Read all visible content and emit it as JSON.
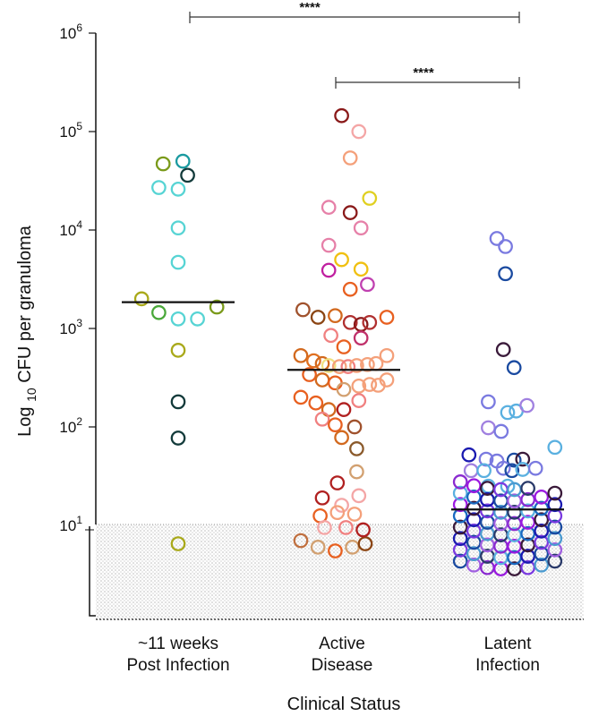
{
  "chart_data": {
    "type": "scatter",
    "title": "",
    "xlabel": "Clinical Status",
    "ylabel": "Log 10 CFU per granuloma",
    "ylabel_parts": {
      "main": "Log ",
      "sub": "10",
      "rest": " CFU per granuloma"
    },
    "y_scale": "log",
    "ylim": [
      3.5,
      1000000
    ],
    "y_ticks": [
      {
        "base": "10",
        "exp": "1",
        "value": 10
      },
      {
        "base": "10",
        "exp": "2",
        "value": 100
      },
      {
        "base": "10",
        "exp": "3",
        "value": 1000
      },
      {
        "base": "10",
        "exp": "4",
        "value": 10000
      },
      {
        "base": "10",
        "exp": "5",
        "value": 100000
      },
      {
        "base": "10",
        "exp": "6",
        "value": 1000000
      }
    ],
    "limit_of_detection": 14,
    "categories": [
      {
        "line1": "~11 weeks",
        "line2": "Post Infection"
      },
      {
        "line1": "Active",
        "line2": "Disease"
      },
      {
        "line1": "Latent",
        "line2": "Infection"
      }
    ],
    "medians": [
      1850,
      380,
      14.5
    ],
    "significance": [
      {
        "from": 0,
        "to": 2,
        "label": "****"
      },
      {
        "from": 1,
        "to": 2,
        "label": "****"
      }
    ],
    "series": [
      {
        "category": "~11 weeks Post Infection",
        "points": [
          {
            "dx": -0.35,
            "y": 47000,
            "color": "#7a9a1a"
          },
          {
            "dx": 0.11,
            "y": 50000,
            "color": "#1a9aa0"
          },
          {
            "dx": 0.22,
            "y": 36000,
            "color": "#123a3a"
          },
          {
            "dx": -0.45,
            "y": 27000,
            "color": "#57d4d4"
          },
          {
            "dx": 0.0,
            "y": 26000,
            "color": "#57d4d4"
          },
          {
            "dx": 0.0,
            "y": 10500,
            "color": "#57d4d4"
          },
          {
            "dx": 0.0,
            "y": 4700,
            "color": "#57d4d4"
          },
          {
            "dx": -0.85,
            "y": 2000,
            "color": "#a9a91a"
          },
          {
            "dx": -0.45,
            "y": 1450,
            "color": "#4aa83a"
          },
          {
            "dx": 0.0,
            "y": 1250,
            "color": "#57d4d4"
          },
          {
            "dx": 0.45,
            "y": 1250,
            "color": "#57d4d4"
          },
          {
            "dx": 0.9,
            "y": 1650,
            "color": "#7a9a1a"
          },
          {
            "dx": 0.0,
            "y": 600,
            "color": "#a9a91a"
          },
          {
            "dx": 0.0,
            "y": 180,
            "color": "#123a3a"
          },
          {
            "dx": 0.0,
            "y": 77,
            "color": "#123a3a"
          },
          {
            "dx": 0.0,
            "y": 6.5,
            "color": "#a9a91a"
          }
        ]
      },
      {
        "category": "Active Disease",
        "points": [
          {
            "dx": -0.05,
            "y": 145000,
            "color": "#8a1a1a"
          },
          {
            "dx": 0.35,
            "y": 100000,
            "color": "#f4a6a6"
          },
          {
            "dx": 0.15,
            "y": 54000,
            "color": "#f4a07a"
          },
          {
            "dx": 0.6,
            "y": 21000,
            "color": "#e0d020"
          },
          {
            "dx": -0.35,
            "y": 17000,
            "color": "#e680a8"
          },
          {
            "dx": 0.15,
            "y": 15000,
            "color": "#8a1a1a"
          },
          {
            "dx": 0.4,
            "y": 10500,
            "color": "#e680a8"
          },
          {
            "dx": -0.35,
            "y": 7000,
            "color": "#e680a8"
          },
          {
            "dx": -0.05,
            "y": 5000,
            "color": "#f0c010"
          },
          {
            "dx": 0.4,
            "y": 4000,
            "color": "#f0c010"
          },
          {
            "dx": -0.35,
            "y": 3900,
            "color": "#c020a0"
          },
          {
            "dx": 0.55,
            "y": 2800,
            "color": "#c040b0"
          },
          {
            "dx": 0.15,
            "y": 2500,
            "color": "#e86020"
          },
          {
            "dx": -0.95,
            "y": 1550,
            "color": "#a0522d"
          },
          {
            "dx": -0.6,
            "y": 1300,
            "color": "#8b4513"
          },
          {
            "dx": -0.2,
            "y": 1350,
            "color": "#d2691e"
          },
          {
            "dx": 0.15,
            "y": 1150,
            "color": "#b03030"
          },
          {
            "dx": 0.4,
            "y": 1100,
            "color": "#8a1a1a"
          },
          {
            "dx": 0.6,
            "y": 1150,
            "color": "#b03030"
          },
          {
            "dx": 1.0,
            "y": 1300,
            "color": "#e86020"
          },
          {
            "dx": -0.3,
            "y": 850,
            "color": "#f08080"
          },
          {
            "dx": 0.4,
            "y": 800,
            "color": "#c0306a"
          },
          {
            "dx": 0.0,
            "y": 650,
            "color": "#e86020"
          },
          {
            "dx": -1.0,
            "y": 530,
            "color": "#d2691e"
          },
          {
            "dx": -0.7,
            "y": 470,
            "color": "#e07020"
          },
          {
            "dx": -0.5,
            "y": 440,
            "color": "#d2691e"
          },
          {
            "dx": -0.35,
            "y": 420,
            "color": "#f0e080"
          },
          {
            "dx": -0.1,
            "y": 410,
            "color": "#f4a07a"
          },
          {
            "dx": 0.1,
            "y": 410,
            "color": "#f08080"
          },
          {
            "dx": 0.3,
            "y": 420,
            "color": "#f4a07a"
          },
          {
            "dx": 0.55,
            "y": 430,
            "color": "#f4a07a"
          },
          {
            "dx": 0.75,
            "y": 440,
            "color": "#f4a07a"
          },
          {
            "dx": 1.0,
            "y": 530,
            "color": "#f4a07a"
          },
          {
            "dx": -0.8,
            "y": 340,
            "color": "#e86020"
          },
          {
            "dx": -0.5,
            "y": 300,
            "color": "#d2691e"
          },
          {
            "dx": -0.2,
            "y": 280,
            "color": "#e86020"
          },
          {
            "dx": 0.0,
            "y": 240,
            "color": "#d2a070"
          },
          {
            "dx": 0.35,
            "y": 260,
            "color": "#f4a07a"
          },
          {
            "dx": 0.6,
            "y": 270,
            "color": "#f4a07a"
          },
          {
            "dx": 0.8,
            "y": 265,
            "color": "#f4a07a"
          },
          {
            "dx": 1.0,
            "y": 300,
            "color": "#f4a07a"
          },
          {
            "dx": -1.0,
            "y": 200,
            "color": "#e86020"
          },
          {
            "dx": -0.65,
            "y": 175,
            "color": "#e86020"
          },
          {
            "dx": -0.35,
            "y": 150,
            "color": "#d2691e"
          },
          {
            "dx": 0.0,
            "y": 150,
            "color": "#b02020"
          },
          {
            "dx": 0.35,
            "y": 185,
            "color": "#f08080"
          },
          {
            "dx": -0.5,
            "y": 120,
            "color": "#f08080"
          },
          {
            "dx": -0.2,
            "y": 105,
            "color": "#e86020"
          },
          {
            "dx": 0.25,
            "y": 100,
            "color": "#a0522d"
          },
          {
            "dx": -0.05,
            "y": 78,
            "color": "#d2691e"
          },
          {
            "dx": 0.3,
            "y": 60,
            "color": "#8b5a2b"
          },
          {
            "dx": 0.3,
            "y": 35,
            "color": "#d2a070"
          },
          {
            "dx": -0.15,
            "y": 27,
            "color": "#b02020"
          },
          {
            "dx": -0.05,
            "y": 16,
            "color": "#f4a6a6"
          },
          {
            "dx": -1.0,
            "y": 7,
            "color": "#c07040"
          },
          {
            "dx": -0.6,
            "y": 6,
            "color": "#d2a070"
          },
          {
            "dx": -0.2,
            "y": 5.5,
            "color": "#e86020"
          },
          {
            "dx": 0.2,
            "y": 6,
            "color": "#d2a070"
          },
          {
            "dx": 0.5,
            "y": 6.5,
            "color": "#8b4513"
          },
          {
            "dx": -0.55,
            "y": 12.5,
            "color": "#e86020"
          },
          {
            "dx": -0.15,
            "y": 13.5,
            "color": "#f4a07a"
          },
          {
            "dx": 0.25,
            "y": 13,
            "color": "#f4a07a"
          },
          {
            "dx": -0.45,
            "y": 9.5,
            "color": "#f4a6a6"
          },
          {
            "dx": 0.05,
            "y": 9.5,
            "color": "#f08080"
          },
          {
            "dx": 0.45,
            "y": 9.0,
            "color": "#b02020"
          },
          {
            "dx": -0.5,
            "y": 19,
            "color": "#b02020"
          },
          {
            "dx": 0.35,
            "y": 20,
            "color": "#f4a6a6"
          }
        ]
      },
      {
        "category": "Latent Infection",
        "points": [
          {
            "dx": -0.25,
            "y": 8200,
            "color": "#7a7ae0"
          },
          {
            "dx": -0.05,
            "y": 6800,
            "color": "#7a7ae0"
          },
          {
            "dx": -0.05,
            "y": 3600,
            "color": "#1a4aa0"
          },
          {
            "dx": -0.1,
            "y": 610,
            "color": "#3a1a3a"
          },
          {
            "dx": 0.15,
            "y": 400,
            "color": "#1a4aa0"
          },
          {
            "dx": -0.45,
            "y": 180,
            "color": "#7a7ae0"
          },
          {
            "dx": 0.0,
            "y": 140,
            "color": "#5ab0e0"
          },
          {
            "dx": 0.2,
            "y": 145,
            "color": "#5ab0e0"
          },
          {
            "dx": 0.45,
            "y": 165,
            "color": "#a080e0"
          },
          {
            "dx": -0.45,
            "y": 98,
            "color": "#a080e0"
          },
          {
            "dx": -0.15,
            "y": 90,
            "color": "#7a7ae0"
          },
          {
            "dx": -0.9,
            "y": 52,
            "color": "#1a1ab0"
          },
          {
            "dx": -0.5,
            "y": 47,
            "color": "#7a7ae0"
          },
          {
            "dx": -0.25,
            "y": 45,
            "color": "#7a7ae0"
          },
          {
            "dx": 0.15,
            "y": 46,
            "color": "#1a4aa0"
          },
          {
            "dx": 0.35,
            "y": 47,
            "color": "#3a1a3a"
          },
          {
            "dx": 1.1,
            "y": 62,
            "color": "#5ab0e0"
          },
          {
            "dx": -0.85,
            "y": 36,
            "color": "#a080e0"
          },
          {
            "dx": -0.55,
            "y": 36,
            "color": "#5ab0e0"
          },
          {
            "dx": -0.1,
            "y": 38,
            "color": "#7a7ae0"
          },
          {
            "dx": 0.1,
            "y": 36,
            "color": "#1a4aa0"
          },
          {
            "dx": 0.35,
            "y": 37,
            "color": "#5ab0e0"
          },
          {
            "dx": 0.65,
            "y": 38,
            "color": "#7a7ae0"
          },
          {
            "dx": -0.45,
            "y": 25,
            "color": "#5ab0e0"
          },
          {
            "dx": 0.0,
            "y": 25,
            "color": "#5ab0e0"
          }
        ],
        "cluster": {
          "count": 62,
          "y_min": 3.6,
          "y_max": 23,
          "colors": [
            "#1a4aa0",
            "#5ab0e0",
            "#7a3ae0",
            "#8a2ad0",
            "#1a1ab0",
            "#2a3a6a",
            "#3a1a3a",
            "#a060e0",
            "#1a6ac0",
            "#4a9ad0",
            "#9a1ae0"
          ]
        }
      }
    ]
  }
}
